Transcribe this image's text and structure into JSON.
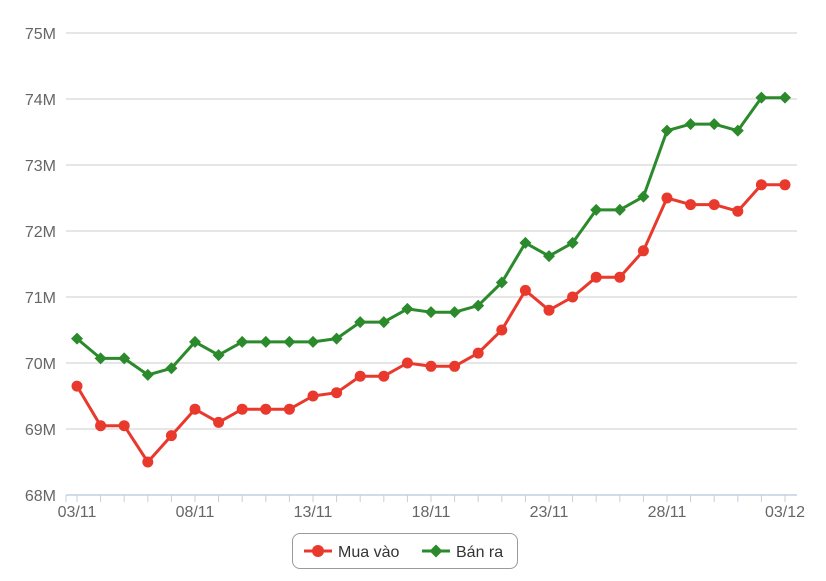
{
  "chart_data": {
    "type": "line",
    "title": "",
    "xlabel": "",
    "ylabel": "",
    "x_tick_labels": [
      "03/11",
      "08/11",
      "13/11",
      "18/11",
      "23/11",
      "28/11",
      "03/12"
    ],
    "y_tick_labels": [
      "68M",
      "69M",
      "70M",
      "71M",
      "72M",
      "73M",
      "74M",
      "75M"
    ],
    "ylim": [
      68000000,
      75000000
    ],
    "x": [
      "03/11",
      "04/11",
      "05/11",
      "06/11",
      "07/11",
      "08/11",
      "09/11",
      "10/11",
      "11/11",
      "12/11",
      "13/11",
      "14/11",
      "15/11",
      "16/11",
      "17/11",
      "18/11",
      "19/11",
      "20/11",
      "21/11",
      "22/11",
      "23/11",
      "24/11",
      "25/11",
      "26/11",
      "27/11",
      "28/11",
      "29/11",
      "30/11",
      "01/12",
      "02/12",
      "03/12"
    ],
    "grid": true,
    "legend_placement": "bottom-center",
    "series": [
      {
        "name": "Mua vào",
        "color": "#e8392c",
        "marker": "circle",
        "values": [
          69650000,
          69050000,
          69050000,
          68500000,
          68900000,
          69300000,
          69100000,
          69300000,
          69300000,
          69300000,
          69500000,
          69550000,
          69800000,
          69800000,
          70000000,
          69950000,
          69950000,
          70150000,
          70500000,
          71100000,
          70800000,
          71000000,
          71300000,
          71300000,
          71700000,
          72500000,
          72400000,
          72400000,
          72300000,
          72700000,
          72700000
        ]
      },
      {
        "name": "Bán ra",
        "color": "#2b8a2b",
        "marker": "diamond",
        "values": [
          70370000,
          70070000,
          70070000,
          69820000,
          69920000,
          70320000,
          70120000,
          70320000,
          70320000,
          70320000,
          70320000,
          70370000,
          70620000,
          70620000,
          70820000,
          70770000,
          70770000,
          70870000,
          71220000,
          71820000,
          71620000,
          71820000,
          72320000,
          72320000,
          72520000,
          73520000,
          73620000,
          73620000,
          73520000,
          74020000,
          74020000
        ]
      }
    ]
  },
  "legend": {
    "items": [
      {
        "label": "Mua vào",
        "color": "#e8392c"
      },
      {
        "label": "Bán ra",
        "color": "#2b8a2b"
      }
    ]
  }
}
